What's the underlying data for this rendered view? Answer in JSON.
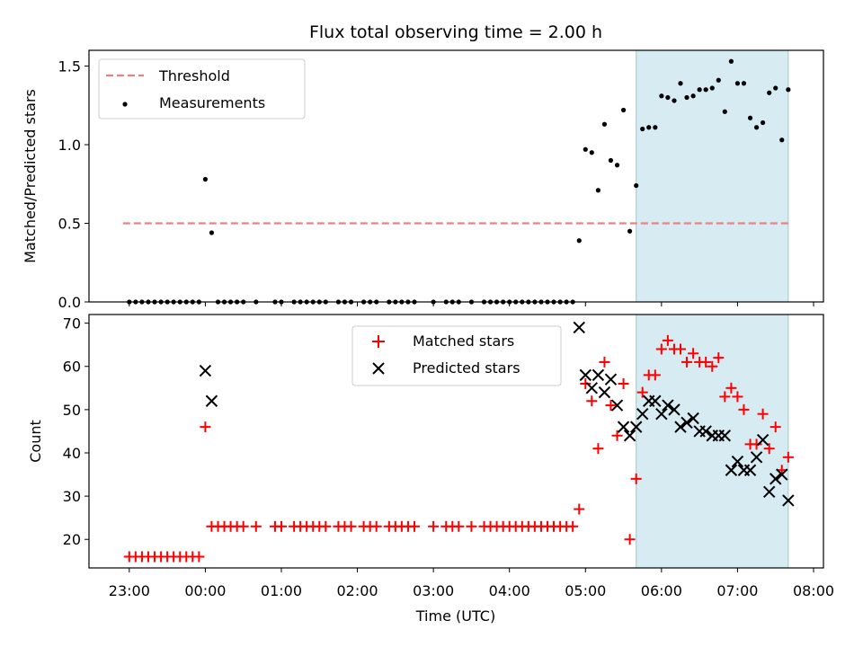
{
  "chart_data": {
    "title": "Flux total observing time = 2.00 h",
    "shaded_interval": [
      5.667,
      7.667
    ],
    "shaded_color": "#add8e6",
    "x_axis": {
      "label": "Time (UTC)",
      "units": "hours relative to 00:00",
      "range": [
        -1.53,
        8.13
      ],
      "ticks": [
        -1,
        0,
        1,
        2,
        3,
        4,
        5,
        6,
        7,
        8
      ],
      "tick_labels": [
        "23:00",
        "00:00",
        "01:00",
        "02:00",
        "03:00",
        "04:00",
        "05:00",
        "06:00",
        "07:00",
        "08:00"
      ]
    },
    "panels": [
      {
        "type": "scatter",
        "ylabel": "Matched/Predicted stars",
        "ylim": [
          0,
          1.6
        ],
        "yticks": [
          0,
          0.5,
          1.0,
          1.5
        ],
        "ytick_labels": [
          "0.0",
          "0.5",
          "1.0",
          "1.5"
        ],
        "threshold": {
          "name": "Threshold",
          "value": 0.5,
          "x_range": [
            -1.083,
            7.667
          ],
          "color": "#f08080"
        },
        "series": [
          {
            "name": "Measurements",
            "color": "#000000",
            "marker": "dot",
            "points": [
              [
                -1.0,
                0
              ],
              [
                -0.917,
                0
              ],
              [
                -0.833,
                0
              ],
              [
                -0.75,
                0
              ],
              [
                -0.667,
                0
              ],
              [
                -0.583,
                0
              ],
              [
                -0.5,
                0
              ],
              [
                -0.417,
                0
              ],
              [
                -0.333,
                0
              ],
              [
                -0.25,
                0
              ],
              [
                -0.167,
                0
              ],
              [
                -0.083,
                0
              ],
              [
                0.0,
                0.78
              ],
              [
                0.083,
                0.44
              ],
              [
                0.167,
                0
              ],
              [
                0.25,
                0
              ],
              [
                0.333,
                0
              ],
              [
                0.417,
                0
              ],
              [
                0.5,
                0
              ],
              [
                0.667,
                0
              ],
              [
                0.917,
                0
              ],
              [
                1.0,
                0
              ],
              [
                1.167,
                0
              ],
              [
                1.25,
                0
              ],
              [
                1.333,
                0
              ],
              [
                1.417,
                0
              ],
              [
                1.5,
                0
              ],
              [
                1.583,
                0
              ],
              [
                1.75,
                0
              ],
              [
                1.833,
                0
              ],
              [
                1.917,
                0
              ],
              [
                2.083,
                0
              ],
              [
                2.167,
                0
              ],
              [
                2.25,
                0
              ],
              [
                2.417,
                0
              ],
              [
                2.5,
                0
              ],
              [
                2.583,
                0
              ],
              [
                2.667,
                0
              ],
              [
                2.75,
                0
              ],
              [
                3.0,
                0
              ],
              [
                3.167,
                0
              ],
              [
                3.25,
                0
              ],
              [
                3.333,
                0
              ],
              [
                3.5,
                0
              ],
              [
                3.667,
                0
              ],
              [
                3.75,
                0
              ],
              [
                3.833,
                0
              ],
              [
                3.917,
                0
              ],
              [
                4.0,
                0
              ],
              [
                4.083,
                0
              ],
              [
                4.167,
                0
              ],
              [
                4.25,
                0
              ],
              [
                4.333,
                0
              ],
              [
                4.417,
                0
              ],
              [
                4.5,
                0
              ],
              [
                4.583,
                0
              ],
              [
                4.667,
                0
              ],
              [
                4.75,
                0
              ],
              [
                4.833,
                0
              ],
              [
                4.917,
                0.39
              ],
              [
                5.0,
                0.97
              ],
              [
                5.083,
                0.95
              ],
              [
                5.167,
                0.71
              ],
              [
                5.25,
                1.13
              ],
              [
                5.333,
                0.9
              ],
              [
                5.417,
                0.87
              ],
              [
                5.5,
                1.22
              ],
              [
                5.583,
                0.45
              ],
              [
                5.667,
                0.74
              ],
              [
                5.75,
                1.1
              ],
              [
                5.833,
                1.11
              ],
              [
                5.917,
                1.11
              ],
              [
                6.0,
                1.31
              ],
              [
                6.083,
                1.3
              ],
              [
                6.167,
                1.28
              ],
              [
                6.25,
                1.39
              ],
              [
                6.333,
                1.3
              ],
              [
                6.417,
                1.31
              ],
              [
                6.5,
                1.35
              ],
              [
                6.583,
                1.35
              ],
              [
                6.667,
                1.36
              ],
              [
                6.75,
                1.41
              ],
              [
                6.833,
                1.21
              ],
              [
                6.917,
                1.53
              ],
              [
                7.0,
                1.39
              ],
              [
                7.083,
                1.39
              ],
              [
                7.167,
                1.17
              ],
              [
                7.25,
                1.11
              ],
              [
                7.333,
                1.14
              ],
              [
                7.417,
                1.33
              ],
              [
                7.5,
                1.36
              ],
              [
                7.583,
                1.03
              ],
              [
                7.667,
                1.35
              ]
            ]
          }
        ],
        "legend": [
          "Threshold",
          "Measurements"
        ]
      },
      {
        "type": "scatter",
        "ylabel": "Count",
        "ylim": [
          13.4,
          72
        ],
        "yticks": [
          20,
          30,
          40,
          50,
          60,
          70
        ],
        "ytick_labels": [
          "20",
          "30",
          "40",
          "50",
          "60",
          "70"
        ],
        "series": [
          {
            "name": "Matched stars",
            "color": "#ff0000",
            "marker": "plus",
            "points": [
              [
                -1.0,
                16
              ],
              [
                -0.917,
                16
              ],
              [
                -0.833,
                16
              ],
              [
                -0.75,
                16
              ],
              [
                -0.667,
                16
              ],
              [
                -0.583,
                16
              ],
              [
                -0.5,
                16
              ],
              [
                -0.417,
                16
              ],
              [
                -0.333,
                16
              ],
              [
                -0.25,
                16
              ],
              [
                -0.167,
                16
              ],
              [
                -0.083,
                16
              ],
              [
                0.0,
                46
              ],
              [
                0.083,
                23
              ],
              [
                0.167,
                23
              ],
              [
                0.25,
                23
              ],
              [
                0.333,
                23
              ],
              [
                0.417,
                23
              ],
              [
                0.5,
                23
              ],
              [
                0.667,
                23
              ],
              [
                0.917,
                23
              ],
              [
                1.0,
                23
              ],
              [
                1.167,
                23
              ],
              [
                1.25,
                23
              ],
              [
                1.333,
                23
              ],
              [
                1.417,
                23
              ],
              [
                1.5,
                23
              ],
              [
                1.583,
                23
              ],
              [
                1.75,
                23
              ],
              [
                1.833,
                23
              ],
              [
                1.917,
                23
              ],
              [
                2.083,
                23
              ],
              [
                2.167,
                23
              ],
              [
                2.25,
                23
              ],
              [
                2.417,
                23
              ],
              [
                2.5,
                23
              ],
              [
                2.583,
                23
              ],
              [
                2.667,
                23
              ],
              [
                2.75,
                23
              ],
              [
                3.0,
                23
              ],
              [
                3.167,
                23
              ],
              [
                3.25,
                23
              ],
              [
                3.333,
                23
              ],
              [
                3.5,
                23
              ],
              [
                3.667,
                23
              ],
              [
                3.75,
                23
              ],
              [
                3.833,
                23
              ],
              [
                3.917,
                23
              ],
              [
                4.0,
                23
              ],
              [
                4.083,
                23
              ],
              [
                4.167,
                23
              ],
              [
                4.25,
                23
              ],
              [
                4.333,
                23
              ],
              [
                4.417,
                23
              ],
              [
                4.5,
                23
              ],
              [
                4.583,
                23
              ],
              [
                4.667,
                23
              ],
              [
                4.75,
                23
              ],
              [
                4.833,
                23
              ],
              [
                4.917,
                27
              ],
              [
                5.0,
                56
              ],
              [
                5.083,
                52
              ],
              [
                5.167,
                41
              ],
              [
                5.25,
                61
              ],
              [
                5.333,
                51
              ],
              [
                5.417,
                44
              ],
              [
                5.5,
                56
              ],
              [
                5.583,
                20
              ],
              [
                5.667,
                34
              ],
              [
                5.75,
                54
              ],
              [
                5.833,
                58
              ],
              [
                5.917,
                58
              ],
              [
                6.0,
                64
              ],
              [
                6.083,
                66
              ],
              [
                6.167,
                64
              ],
              [
                6.25,
                64
              ],
              [
                6.333,
                61
              ],
              [
                6.417,
                63
              ],
              [
                6.5,
                61
              ],
              [
                6.583,
                61
              ],
              [
                6.667,
                60
              ],
              [
                6.75,
                62
              ],
              [
                6.833,
                53
              ],
              [
                6.917,
                55
              ],
              [
                7.0,
                53
              ],
              [
                7.083,
                50
              ],
              [
                7.167,
                42
              ],
              [
                7.25,
                42
              ],
              [
                7.333,
                49
              ],
              [
                7.417,
                41
              ],
              [
                7.5,
                46
              ],
              [
                7.583,
                36
              ],
              [
                7.667,
                39
              ]
            ]
          },
          {
            "name": "Predicted stars",
            "color": "#000000",
            "marker": "x",
            "points": [
              [
                0.0,
                59
              ],
              [
                0.083,
                52
              ],
              [
                4.917,
                69
              ],
              [
                5.0,
                58
              ],
              [
                5.083,
                55
              ],
              [
                5.167,
                58
              ],
              [
                5.25,
                54
              ],
              [
                5.333,
                57
              ],
              [
                5.417,
                51
              ],
              [
                5.5,
                46
              ],
              [
                5.583,
                44
              ],
              [
                5.667,
                46
              ],
              [
                5.75,
                49
              ],
              [
                5.833,
                52
              ],
              [
                5.917,
                52
              ],
              [
                6.0,
                49
              ],
              [
                6.083,
                51
              ],
              [
                6.167,
                50
              ],
              [
                6.25,
                46
              ],
              [
                6.333,
                47
              ],
              [
                6.417,
                48
              ],
              [
                6.5,
                45
              ],
              [
                6.583,
                45
              ],
              [
                6.667,
                44
              ],
              [
                6.75,
                44
              ],
              [
                6.833,
                44
              ],
              [
                6.917,
                36
              ],
              [
                7.0,
                38
              ],
              [
                7.083,
                36
              ],
              [
                7.167,
                36
              ],
              [
                7.25,
                39
              ],
              [
                7.333,
                43
              ],
              [
                7.417,
                31
              ],
              [
                7.5,
                34
              ],
              [
                7.583,
                35
              ],
              [
                7.667,
                29
              ]
            ]
          }
        ],
        "legend": [
          "Matched stars",
          "Predicted stars"
        ]
      }
    ]
  }
}
